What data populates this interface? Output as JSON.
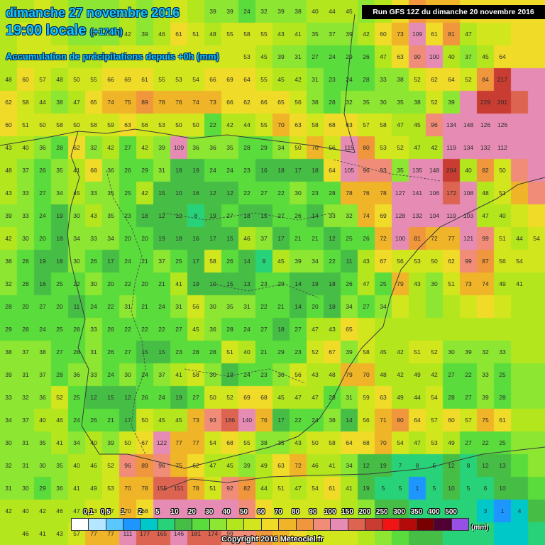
{
  "header": {
    "date": "dimanche 27 novembre 2016",
    "time": "19:00 locale",
    "lead": "(+174h)",
    "subtitle": "Accumulation de précipitations depuis +0h (mm)",
    "run": "Run GFS 12Z du dimanche 20 novembre 2016"
  },
  "legend": {
    "unit": "(mm)",
    "classes": [
      {
        "label": "",
        "color": "#ffffff"
      },
      {
        "label": "0,1",
        "color": "#b4e6ff"
      },
      {
        "label": "0,5",
        "color": "#5ac8ff"
      },
      {
        "label": "1",
        "color": "#1e96ff"
      },
      {
        "label": "2",
        "color": "#00c8c8"
      },
      {
        "label": "5",
        "color": "#28d278"
      },
      {
        "label": "10",
        "color": "#46be46"
      },
      {
        "label": "20",
        "color": "#5adc3c"
      },
      {
        "label": "30",
        "color": "#8ce632"
      },
      {
        "label": "40",
        "color": "#b4e61e"
      },
      {
        "label": "50",
        "color": "#d2e61e"
      },
      {
        "label": "60",
        "color": "#f0dc28"
      },
      {
        "label": "70",
        "color": "#f0b428"
      },
      {
        "label": "80",
        "color": "#f0963c"
      },
      {
        "label": "90",
        "color": "#f08c78"
      },
      {
        "label": "100",
        "color": "#e68cb4"
      },
      {
        "label": "150",
        "color": "#dc6450"
      },
      {
        "label": "200",
        "color": "#c83c32"
      },
      {
        "label": "250",
        "color": "#f01414"
      },
      {
        "label": "300",
        "color": "#b40a0a"
      },
      {
        "label": "350",
        "color": "#780000"
      },
      {
        "label": "400",
        "color": "#500032"
      },
      {
        "label": "500",
        "color": "#9650e6"
      }
    ]
  },
  "copyright": "Copyright 2016 Meteociel.fr",
  "grid_values": [
    [
      null,
      null,
      null,
      null,
      null,
      null,
      null,
      null,
      null,
      null,
      null,
      null,
      39,
      39,
      24,
      32,
      39,
      38,
      40,
      44,
      45,
      37,
      null,
      null,
      null,
      null,
      null,
      null,
      null,
      null,
      null,
      null
    ],
    [
      null,
      null,
      null,
      null,
      null,
      39,
      39,
      42,
      39,
      46,
      61,
      51,
      48,
      55,
      58,
      55,
      43,
      41,
      35,
      37,
      39,
      42,
      60,
      73,
      109,
      61,
      81,
      47,
      null,
      null,
      null,
      null
    ],
    [
      null,
      null,
      null,
      null,
      null,
      null,
      null,
      null,
      null,
      null,
      null,
      null,
      null,
      null,
      53,
      45,
      39,
      31,
      27,
      24,
      29,
      26,
      47,
      63,
      90,
      100,
      40,
      37,
      45,
      64,
      null,
      null
    ],
    [
      48,
      60,
      57,
      48,
      50,
      55,
      66,
      69,
      61,
      55,
      53,
      54,
      66,
      69,
      64,
      55,
      45,
      42,
      31,
      23,
      24,
      28,
      33,
      38,
      52,
      62,
      64,
      52,
      84,
      217,
      null,
      null
    ],
    [
      62,
      58,
      44,
      38,
      47,
      65,
      74,
      75,
      89,
      78,
      76,
      74,
      73,
      66,
      62,
      66,
      65,
      56,
      38,
      28,
      32,
      35,
      30,
      35,
      38,
      52,
      39,
      null,
      229,
      201,
      null,
      null
    ],
    [
      60,
      51,
      50,
      58,
      50,
      58,
      59,
      63,
      56,
      53,
      50,
      50,
      22,
      42,
      44,
      55,
      70,
      63,
      58,
      68,
      63,
      57,
      58,
      47,
      45,
      96,
      134,
      148,
      126,
      126,
      null,
      null
    ],
    [
      43,
      40,
      36,
      28,
      62,
      32,
      42,
      27,
      42,
      39,
      109,
      36,
      36,
      35,
      28,
      29,
      34,
      50,
      70,
      56,
      115,
      80,
      53,
      52,
      47,
      42,
      119,
      134,
      132,
      112,
      null,
      null
    ],
    [
      48,
      37,
      26,
      35,
      41,
      68,
      36,
      26,
      29,
      31,
      18,
      19,
      24,
      24,
      23,
      16,
      18,
      17,
      18,
      64,
      105,
      96,
      93,
      35,
      135,
      148,
      204,
      40,
      82,
      50,
      null,
      null
    ],
    [
      43,
      33,
      27,
      34,
      45,
      33,
      35,
      25,
      42,
      15,
      10,
      16,
      12,
      12,
      22,
      27,
      22,
      30,
      23,
      28,
      78,
      76,
      78,
      127,
      141,
      106,
      172,
      108,
      48,
      51,
      null,
      null
    ],
    [
      39,
      33,
      24,
      19,
      30,
      43,
      35,
      23,
      18,
      12,
      12,
      8,
      19,
      27,
      18,
      15,
      27,
      26,
      14,
      33,
      32,
      74,
      69,
      128,
      132,
      104,
      119,
      103,
      47,
      40,
      null,
      null
    ],
    [
      42,
      30,
      20,
      18,
      34,
      33,
      34,
      20,
      20,
      19,
      18,
      16,
      17,
      15,
      46,
      37,
      17,
      21,
      21,
      12,
      25,
      26,
      72,
      100,
      81,
      72,
      77,
      121,
      99,
      51,
      44,
      54
    ],
    [
      38,
      28,
      19,
      18,
      30,
      26,
      17,
      24,
      21,
      37,
      25,
      17,
      58,
      26,
      14,
      9,
      45,
      39,
      34,
      22,
      11,
      43,
      67,
      56,
      53,
      50,
      62,
      99,
      87,
      56,
      54,
      null
    ],
    [
      32,
      28,
      16,
      25,
      22,
      30,
      20,
      22,
      20,
      21,
      41,
      19,
      10,
      15,
      13,
      23,
      29,
      14,
      19,
      18,
      26,
      47,
      25,
      79,
      43,
      30,
      51,
      73,
      74,
      49,
      41,
      null
    ],
    [
      28,
      20,
      27,
      20,
      11,
      24,
      22,
      31,
      21,
      24,
      31,
      56,
      30,
      35,
      31,
      22,
      21,
      14,
      20,
      18,
      34,
      27,
      34,
      null,
      null,
      null,
      null,
      null,
      null,
      null,
      null,
      null
    ],
    [
      29,
      28,
      24,
      25,
      28,
      33,
      26,
      22,
      22,
      22,
      27,
      45,
      36,
      28,
      24,
      27,
      18,
      27,
      47,
      43,
      65,
      null,
      null,
      null,
      null,
      null,
      null,
      null,
      null,
      null,
      null,
      null
    ],
    [
      38,
      37,
      38,
      27,
      28,
      31,
      26,
      27,
      15,
      15,
      23,
      28,
      28,
      51,
      40,
      21,
      29,
      23,
      52,
      67,
      39,
      58,
      45,
      42,
      51,
      52,
      30,
      39,
      32,
      33,
      null,
      null
    ],
    [
      39,
      31,
      37,
      28,
      36,
      33,
      24,
      30,
      24,
      37,
      41,
      58,
      30,
      13,
      24,
      23,
      30,
      56,
      43,
      48,
      79,
      70,
      48,
      42,
      49,
      42,
      27,
      22,
      33,
      25,
      null,
      null
    ],
    [
      33,
      32,
      36,
      52,
      25,
      12,
      15,
      12,
      26,
      24,
      19,
      27,
      50,
      52,
      69,
      68,
      45,
      47,
      47,
      28,
      31,
      59,
      63,
      49,
      44,
      54,
      28,
      27,
      39,
      28,
      null,
      null
    ],
    [
      34,
      37,
      40,
      46,
      24,
      26,
      21,
      17,
      50,
      45,
      45,
      73,
      93,
      186,
      140,
      76,
      17,
      22,
      24,
      38,
      14,
      56,
      71,
      80,
      64,
      57,
      60,
      57,
      75,
      61,
      null,
      null
    ],
    [
      30,
      31,
      35,
      41,
      34,
      40,
      39,
      50,
      67,
      122,
      77,
      77,
      54,
      68,
      55,
      38,
      35,
      43,
      50,
      58,
      64,
      68,
      70,
      54,
      47,
      53,
      49,
      27,
      22,
      25,
      null,
      null
    ],
    [
      32,
      31,
      30,
      35,
      40,
      46,
      52,
      96,
      89,
      96,
      75,
      62,
      47,
      45,
      39,
      49,
      63,
      72,
      46,
      41,
      34,
      12,
      19,
      7,
      8,
      5,
      12,
      8,
      12,
      13,
      null,
      null
    ],
    [
      31,
      30,
      29,
      36,
      41,
      49,
      53,
      70,
      78,
      155,
      151,
      78,
      51,
      92,
      82,
      44,
      51,
      47,
      54,
      61,
      41,
      19,
      5,
      5,
      1,
      5,
      10,
      5,
      6,
      10,
      null,
      null
    ],
    [
      42,
      40,
      42,
      46,
      47,
      53,
      57,
      70,
      68,
      null,
      null,
      null,
      null,
      null,
      null,
      null,
      null,
      null,
      null,
      null,
      null,
      null,
      null,
      null,
      null,
      null,
      null,
      null,
      3,
      1,
      4,
      null
    ],
    [
      null,
      46,
      41,
      43,
      57,
      77,
      77,
      111,
      177,
      165,
      146,
      181,
      174,
      99,
      null,
      null,
      null,
      null,
      null,
      null,
      null,
      null,
      null,
      null,
      null,
      null,
      null,
      null,
      null,
      null,
      null,
      null
    ]
  ]
}
